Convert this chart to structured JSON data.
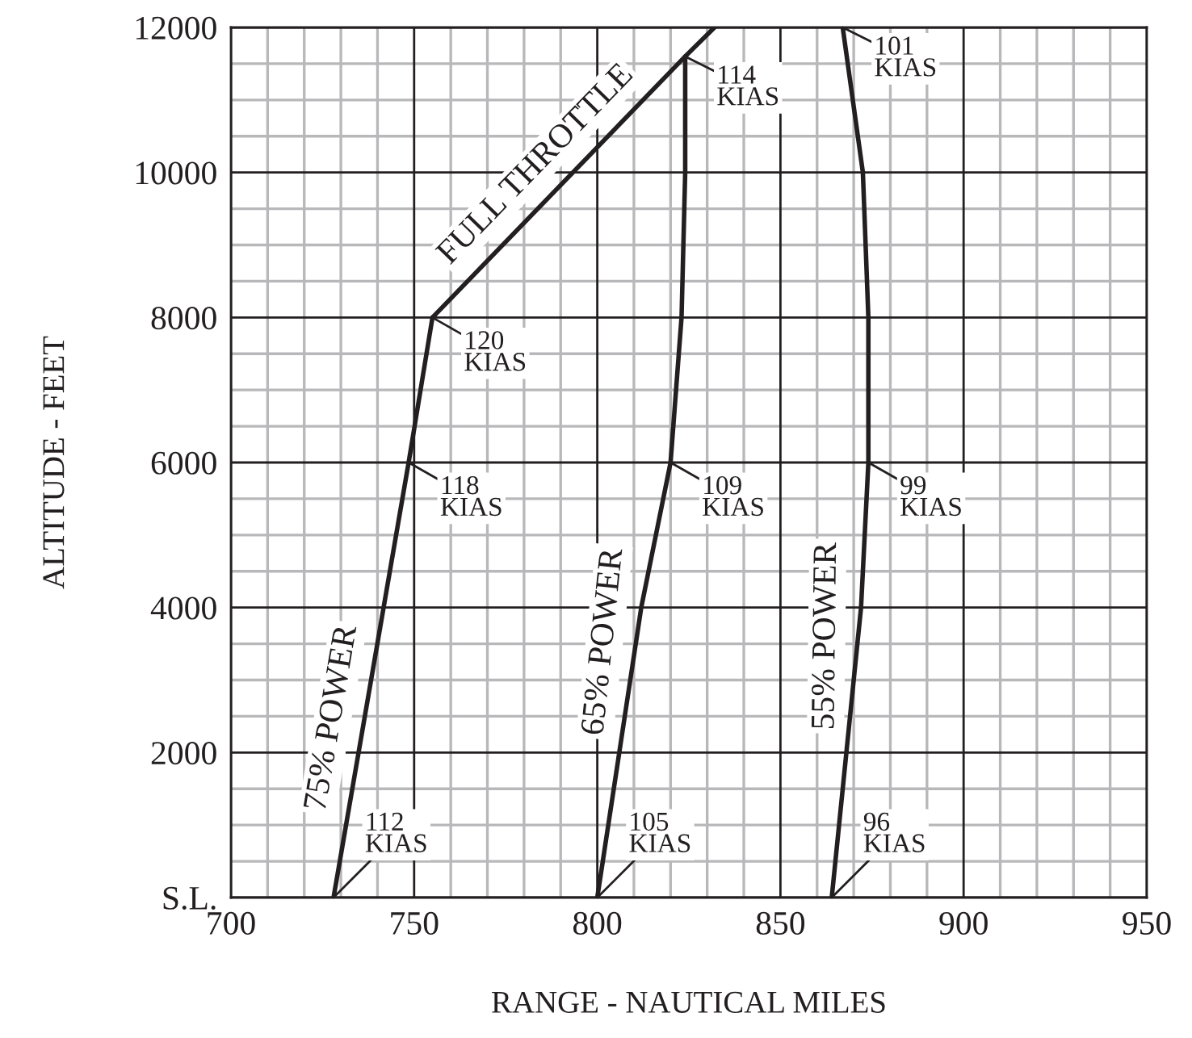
{
  "chart_data": {
    "type": "line",
    "xlabel": "RANGE - NAUTICAL MILES",
    "ylabel": "ALTITUDE - FEET",
    "series": [
      {
        "name": "75% POWER",
        "color": "#231f20",
        "x": [
          728,
          748.5,
          755
        ],
        "values": [
          0,
          6000,
          8000
        ]
      },
      {
        "name": "FULL THROTTLE",
        "color": "#231f20",
        "x": [
          755,
          824,
          832
        ],
        "values": [
          8000,
          11600,
          12000
        ]
      },
      {
        "name": "65% POWER",
        "color": "#231f20",
        "x": [
          800,
          806,
          812,
          820,
          823,
          824,
          824
        ],
        "values": [
          0,
          2000,
          4000,
          6000,
          8000,
          10000,
          11600
        ]
      },
      {
        "name": "55% POWER",
        "color": "#231f20",
        "x": [
          864,
          868,
          872,
          874,
          874,
          872.5,
          867
        ],
        "values": [
          0,
          2000,
          4000,
          6000,
          8000,
          10000,
          12000
        ]
      }
    ],
    "annotations": [
      {
        "text": "112\nKIAS",
        "x": 728,
        "y": 0
      },
      {
        "text": "118\nKIAS",
        "x": 748.5,
        "y": 6000
      },
      {
        "text": "120\nKIAS",
        "x": 755,
        "y": 8000
      },
      {
        "text": "114\nKIAS",
        "x": 824,
        "y": 11600
      },
      {
        "text": "105\nKIAS",
        "x": 800,
        "y": 0
      },
      {
        "text": "109\nKIAS",
        "x": 820,
        "y": 6000
      },
      {
        "text": "96\nKIAS",
        "x": 864,
        "y": 0
      },
      {
        "text": "99\nKIAS",
        "x": 874,
        "y": 6000
      },
      {
        "text": "101\nKIAS",
        "x": 867,
        "y": 12000
      }
    ],
    "xlim": [
      700,
      950
    ],
    "xticks": [
      700,
      {
        "value": 710,
        "label": null
      },
      {
        "value": 720,
        "label": null
      },
      {
        "value": 730,
        "label": null
      },
      {
        "value": 740,
        "label": null
      },
      750,
      {
        "value": 760,
        "label": null
      },
      {
        "value": 770,
        "label": null
      },
      {
        "value": 780,
        "label": null
      },
      {
        "value": 790,
        "label": null
      },
      800,
      {
        "value": 810,
        "label": null
      },
      {
        "value": 820,
        "label": null
      },
      {
        "value": 830,
        "label": null
      },
      {
        "value": 840,
        "label": null
      },
      850,
      {
        "value": 860,
        "label": null
      },
      {
        "value": 870,
        "label": null
      },
      {
        "value": 880,
        "label": null
      },
      {
        "value": 890,
        "label": null
      },
      900,
      {
        "value": 910,
        "label": null
      },
      {
        "value": 920,
        "label": null
      },
      {
        "value": 930,
        "label": null
      },
      {
        "value": 940,
        "label": null
      },
      950
    ],
    "ylim": [
      0,
      12000
    ],
    "yticks": [
      {
        "value": 0,
        "label": "S.L."
      },
      {
        "value": 500,
        "label": null
      },
      {
        "value": 1000,
        "label": null
      },
      {
        "value": 1500,
        "label": null
      },
      2000,
      {
        "value": 2500,
        "label": null
      },
      {
        "value": 3000,
        "label": null
      },
      {
        "value": 3500,
        "label": null
      },
      4000,
      {
        "value": 4500,
        "label": null
      },
      {
        "value": 5000,
        "label": null
      },
      {
        "value": 5500,
        "label": null
      },
      6000,
      {
        "value": 6500,
        "label": null
      },
      {
        "value": 7000,
        "label": null
      },
      {
        "value": 7500,
        "label": null
      },
      8000,
      {
        "value": 8500,
        "label": null
      },
      {
        "value": 9000,
        "label": null
      },
      {
        "value": 9500,
        "label": null
      },
      10000,
      {
        "value": 10500,
        "label": null
      },
      {
        "value": 11000,
        "label": null
      },
      {
        "value": 11500,
        "label": null
      },
      12000
    ],
    "grid": true,
    "marker": "none",
    "line_style": "solid",
    "legend": false
  }
}
